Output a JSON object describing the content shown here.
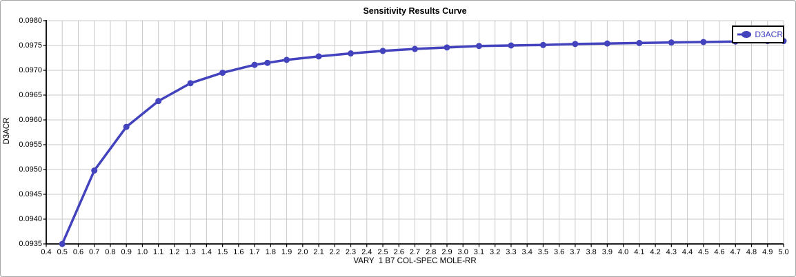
{
  "window": {
    "background": "#ffffff",
    "border_color": "#a6a6a6"
  },
  "chart_data": {
    "type": "line",
    "title": "Sensitivity Results Curve",
    "xlabel": "VARY  1 B7 COL-SPEC MOLE-RR",
    "ylabel": "D3ACR",
    "xlim": [
      0.4,
      5.0
    ],
    "ylim": [
      0.0935,
      0.098
    ],
    "grid": true,
    "legend_position": "top-right",
    "x_ticks": [
      "0.4",
      "0.5",
      "0.6",
      "0.7",
      "0.8",
      "0.9",
      "1.0",
      "1.1",
      "1.2",
      "1.3",
      "1.4",
      "1.5",
      "1.6",
      "1.7",
      "1.8",
      "1.9",
      "2.0",
      "2.1",
      "2.2",
      "2.3",
      "2.4",
      "2.5",
      "2.6",
      "2.7",
      "2.8",
      "2.9",
      "3.0",
      "3.1",
      "3.2",
      "3.3",
      "3.4",
      "3.5",
      "3.6",
      "3.7",
      "3.8",
      "3.9",
      "4.0",
      "4.1",
      "4.2",
      "4.3",
      "4.4",
      "4.5",
      "4.6",
      "4.7",
      "4.8",
      "4.9",
      "5.0"
    ],
    "y_ticks": [
      "0.0935",
      "0.0940",
      "0.0945",
      "0.0950",
      "0.0955",
      "0.0960",
      "0.0965",
      "0.0970",
      "0.0975",
      "0.0980"
    ],
    "series": [
      {
        "name": "D3ACR",
        "color": "#4343bd",
        "x": [
          0.5,
          0.7,
          0.9,
          1.1,
          1.3,
          1.5,
          1.7,
          1.78,
          1.9,
          2.1,
          2.3,
          2.5,
          2.7,
          2.9,
          3.1,
          3.3,
          3.5,
          3.7,
          3.9,
          4.1,
          4.3,
          4.5,
          4.7,
          4.9,
          5.0
        ],
        "y": [
          0.0935,
          0.09498,
          0.09586,
          0.09638,
          0.09674,
          0.09695,
          0.09711,
          0.09715,
          0.09721,
          0.09728,
          0.09734,
          0.09739,
          0.09743,
          0.09746,
          0.09749,
          0.0975,
          0.09751,
          0.09753,
          0.09754,
          0.09755,
          0.09756,
          0.09757,
          0.09758,
          0.09759,
          0.09759
        ]
      }
    ],
    "colors": {
      "grid": "#c9c9c9",
      "axis": "#000000",
      "legend_border": "#000000",
      "legend_text": "#3b3bc0"
    }
  }
}
